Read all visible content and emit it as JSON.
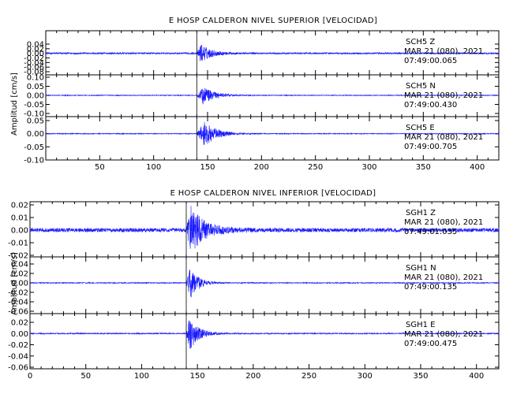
{
  "chart_data": [
    {
      "type": "line",
      "title": "E HOSP CALDERON NIVEL SUPERIOR [VELOCIDAD]",
      "ylabel": "Amplitud [cm/s]",
      "xlabel": "",
      "xlim": [
        0,
        420
      ],
      "x_ticks": [
        "50",
        "100",
        "150",
        "200",
        "250",
        "300",
        "350",
        "400"
      ],
      "line_color": "#1a1aff",
      "panels": [
        {
          "channel": "SCH5   Z",
          "date": "MAR 21 (080), 2021",
          "time": "07:49:00.065",
          "ylim": [
            -0.08,
            0.045
          ],
          "y_ticks": [
            "0.04",
            "0.02",
            "0.00",
            "-0.02",
            "-0.04",
            "-0.06",
            "-0.08"
          ],
          "onset": 140,
          "peak": 0.04,
          "noise": 0.0035,
          "decay": 9,
          "peak_t": 4
        },
        {
          "channel": "SCH5   N",
          "date": "MAR 21 (080), 2021",
          "time": "07:49:00.430",
          "ylim": [
            -0.1,
            0.1
          ],
          "y_ticks": [
            "0.10",
            "0.05",
            "0.00",
            "-0.05",
            "-0.10"
          ],
          "onset": 140,
          "peak": 0.05,
          "noise": 0.002,
          "decay": 10,
          "peak_t": 6
        },
        {
          "channel": "SCH5   E",
          "date": "MAR 21 (080), 2021",
          "time": "07:49:00.705",
          "ylim": [
            -0.1,
            0.1
          ],
          "y_ticks": [
            "0.05",
            "0.00",
            "-0.05",
            "-0.10"
          ],
          "onset": 140,
          "peak": 0.05,
          "noise": 0.0015,
          "decay": 11,
          "peak_t": 7
        }
      ]
    },
    {
      "type": "line",
      "title": "E HOSP CALDERON NIVEL INFERIOR [VELOCIDAD]",
      "ylabel": "Amplitud [cm/s]",
      "xlabel": "",
      "xlim": [
        0,
        420
      ],
      "x_ticks": [
        "0",
        "50",
        "100",
        "150",
        "200",
        "250",
        "300",
        "350",
        "400"
      ],
      "line_color": "#1a1aff",
      "panels": [
        {
          "channel": "SGH1   Z",
          "date": "MAR 21 (080), 2021",
          "time": "07:49:01.035",
          "ylim": [
            -0.02,
            0.02
          ],
          "y_ticks": [
            "0.02",
            "0.01",
            "0.00",
            "-0.01",
            "-0.02"
          ],
          "onset": 140,
          "peak": 0.018,
          "noise": 0.0016,
          "decay": 12,
          "peak_t": 4
        },
        {
          "channel": "SGH1   N",
          "date": "MAR 21 (080), 2021",
          "time": "07:49:00.135",
          "ylim": [
            -0.06,
            0.04
          ],
          "y_ticks": [
            "0.04",
            "0.02",
            "0.00",
            "-0.02",
            "-0.04",
            "-0.06"
          ],
          "onset": 140,
          "peak": 0.04,
          "noise": 0.001,
          "decay": 7,
          "peak_t": 3
        },
        {
          "channel": "SGH1   E",
          "date": "MAR 21 (080), 2021",
          "time": "07:49:00.475",
          "ylim": [
            -0.065,
            0.04
          ],
          "y_ticks": [
            "0.02",
            "0.00",
            "-0.02",
            "-0.04",
            "-0.06"
          ],
          "onset": 140,
          "peak": 0.03,
          "noise": 0.001,
          "decay": 8,
          "peak_t": 3
        }
      ]
    }
  ]
}
